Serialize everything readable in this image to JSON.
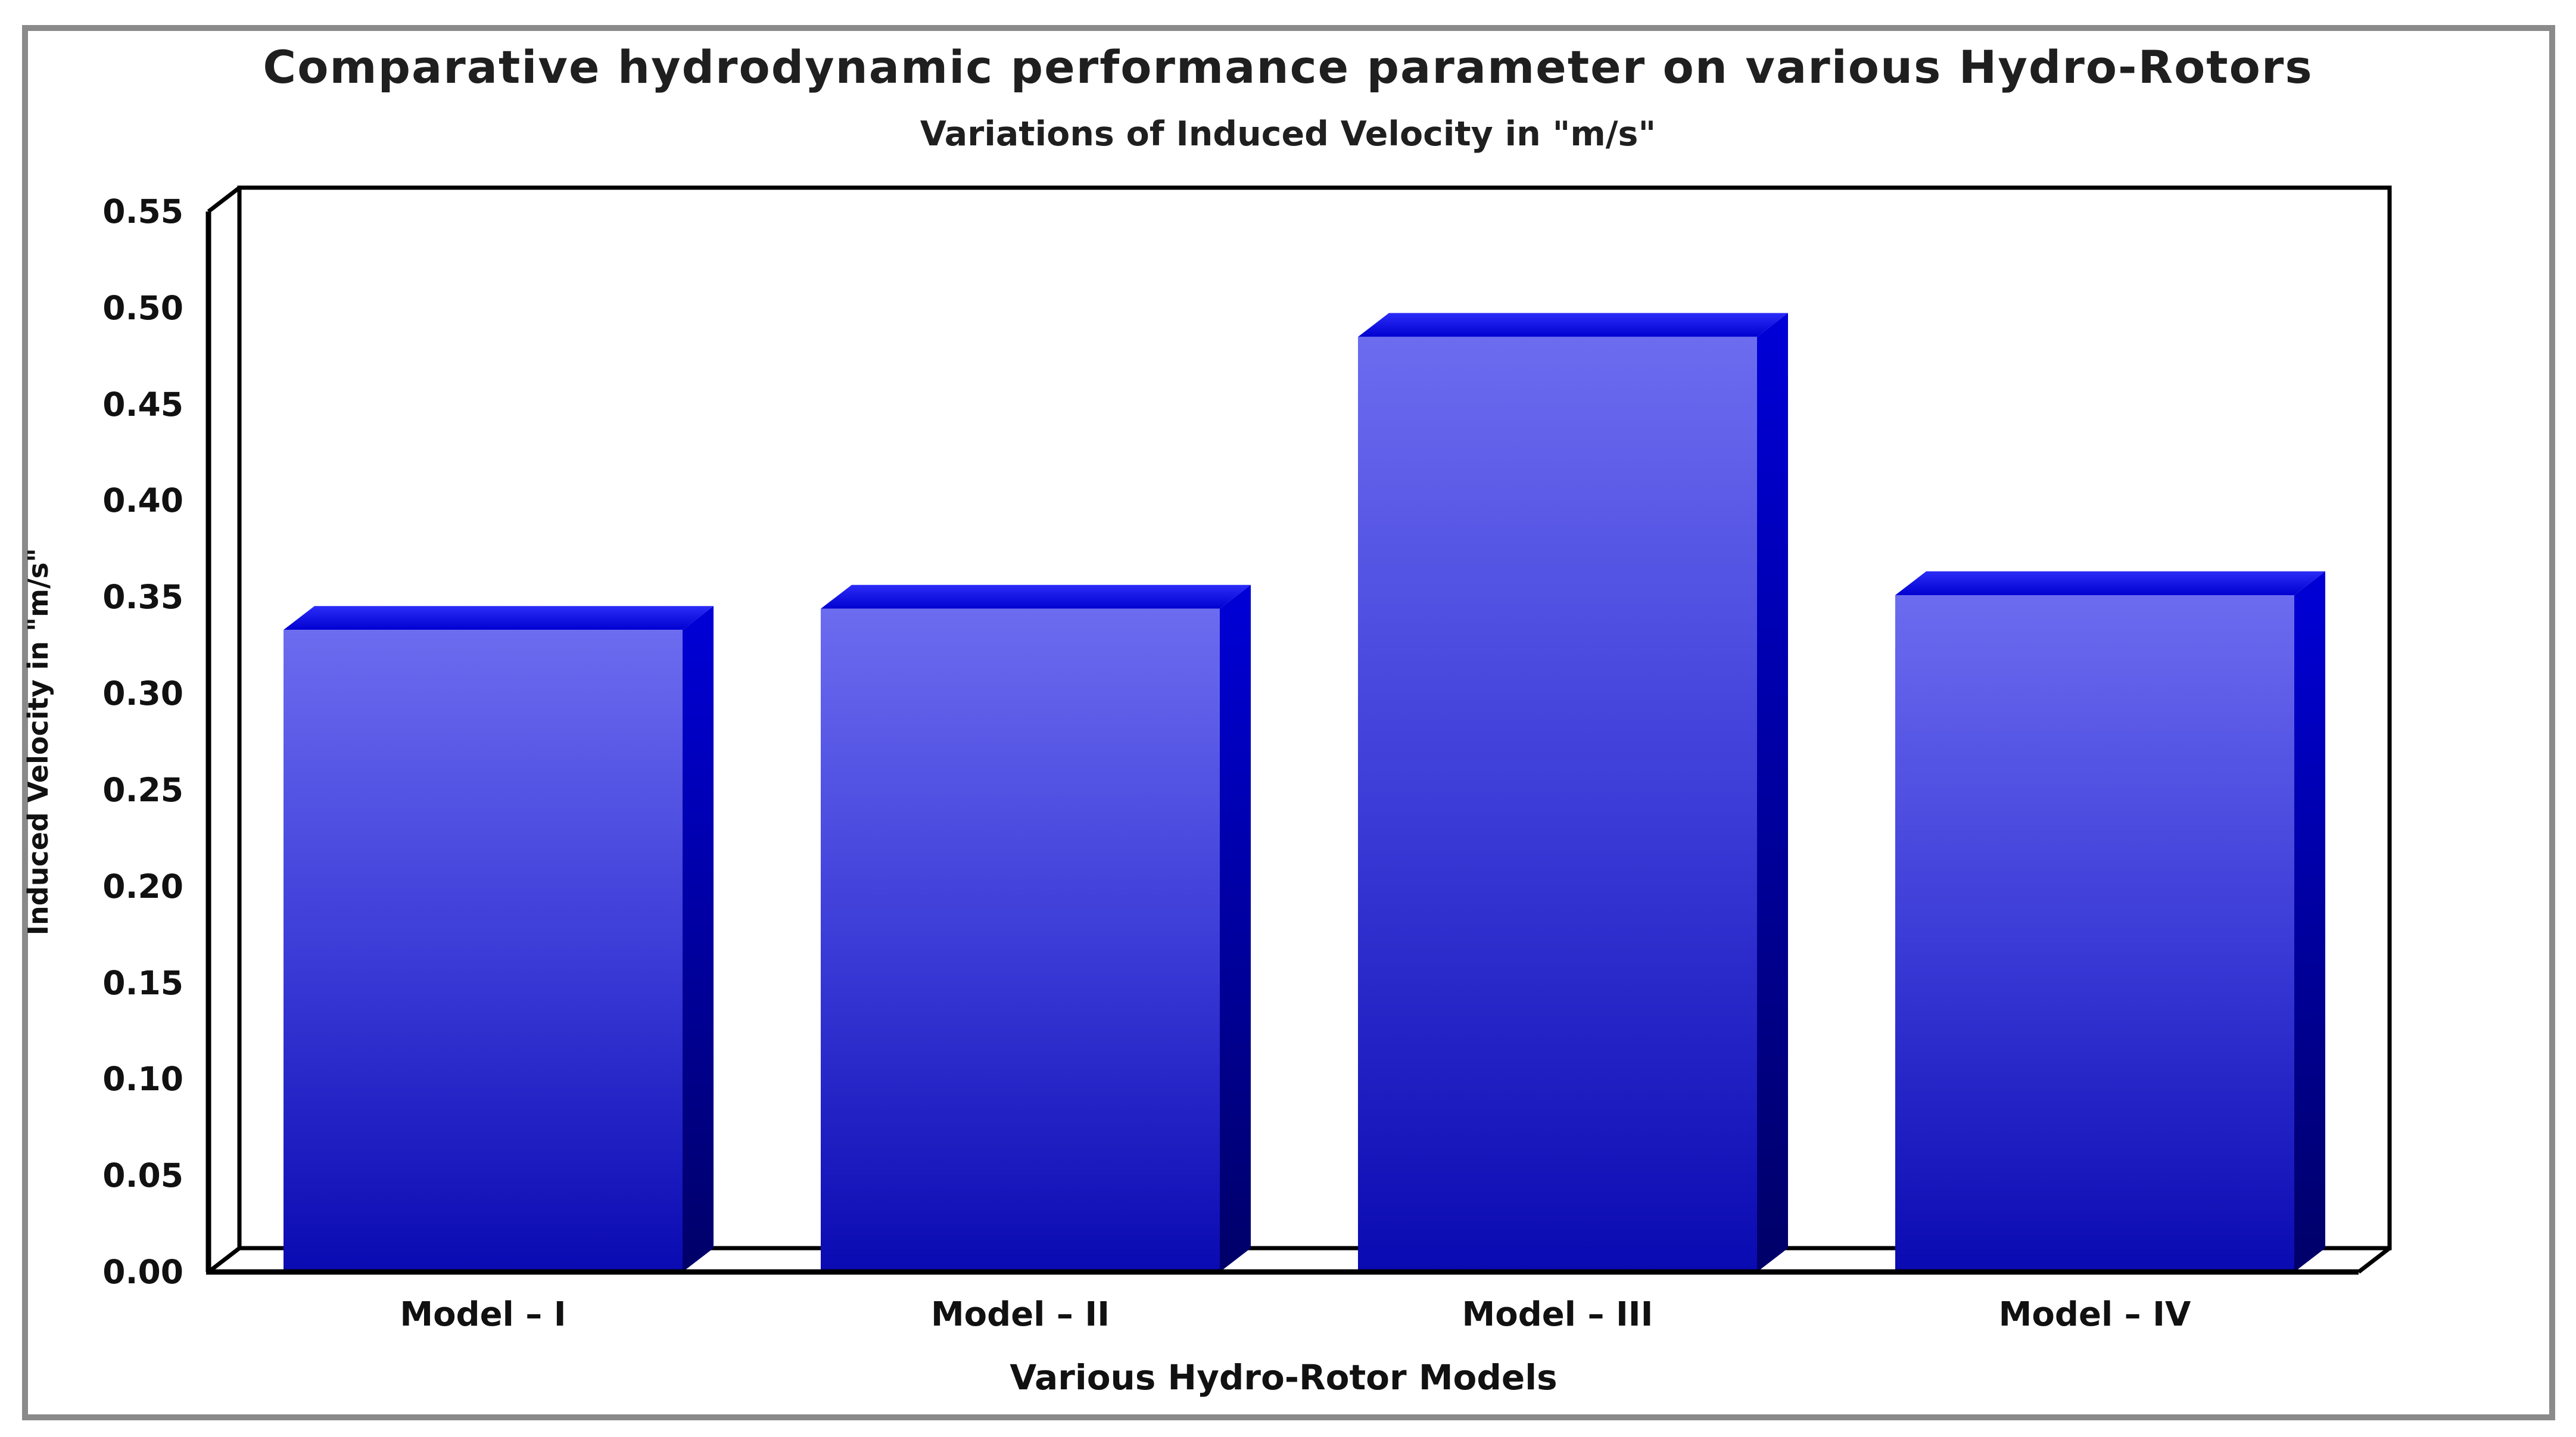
{
  "title": "Comparative hydrodynamic performance parameter on various Hydro-Rotors",
  "subtitle": "Variations of Induced Velocity in \"m/s\"",
  "chart_data": {
    "type": "bar",
    "style": "3d-box-bars",
    "title": "Comparative hydrodynamic performance parameter on various Hydro-Rotors",
    "subtitle": "Variations of Induced Velocity in \"m/s\"",
    "categories": [
      "Model – I",
      "Model – II",
      "Model – III",
      "Model – IV"
    ],
    "values": [
      0.333,
      0.344,
      0.485,
      0.351
    ],
    "xlabel": "Various Hydro-Rotor Models",
    "ylabel": "Induced Velocity in \"m/s\"",
    "ylim": [
      0,
      0.55
    ],
    "ytick_labels": [
      "0.00",
      "0.05",
      "0.10",
      "0.15",
      "0.20",
      "0.25",
      "0.30",
      "0.35",
      "0.40",
      "0.45",
      "0.50",
      "0.55"
    ],
    "grid": false,
    "legend": "none",
    "colors": {
      "bar_front_top": "#6c6cf0",
      "bar_front_mid": "#3c3cd8",
      "bar_front_bottom": "#0a0ab2",
      "bar_top_back": "#2d2df8",
      "bar_top_front": "#0000d0",
      "bar_side_top": "#0000d8",
      "bar_side_bottom": "#000068",
      "axis_line": "#000000",
      "text": "#111111",
      "frame_border": "#8a8a8a",
      "background": "#ffffff"
    }
  }
}
